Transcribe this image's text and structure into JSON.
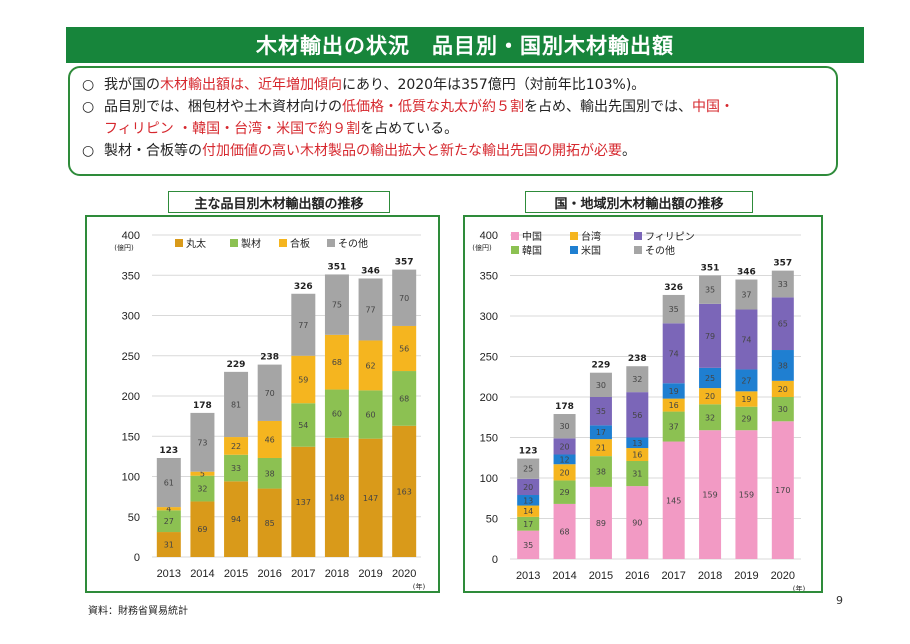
{
  "header": {
    "title": "木材輸出の状況　品目別・国別木材輸出額"
  },
  "summary": {
    "bullet": "○",
    "line1": {
      "a": "我が国の",
      "b": "木材輸出額は、近年増加傾向",
      "c": "にあり、2020年は357億円（対前年比103%)。"
    },
    "line2": {
      "a": "品目別では、梱包材や土木資材向けの",
      "b": "低価格・低質な丸太が約５割",
      "c": "を占め、輸出先国別では、",
      "d": "中国・"
    },
    "line3": {
      "a": "フィリピン ・韓国・台湾・米国で約９割",
      "b": "を占めている。"
    },
    "line4": {
      "a": "製材・合板等の",
      "b": "付加価値の高い木材製品の輸出拡大と新たな輸出先国の開拓が必要",
      "c": "。"
    }
  },
  "footer": {
    "source": "資料：財務省貿易統計",
    "page": "9"
  },
  "chart_data": [
    {
      "type": "bar",
      "stacked": true,
      "title": "主な品目別木材輸出額の推移",
      "ylabel": "(億円)",
      "xlabel": "(年)",
      "ylim": [
        0,
        400
      ],
      "yticks": [
        0,
        50,
        100,
        150,
        200,
        250,
        300,
        350,
        400
      ],
      "categories": [
        "2013",
        "2014",
        "2015",
        "2016",
        "2017",
        "2018",
        "2019",
        "2020"
      ],
      "totals": [
        123,
        178,
        229,
        238,
        326,
        351,
        346,
        357
      ],
      "legend_position": "top-left",
      "series": [
        {
          "name": "丸太",
          "color": "#d99a1a",
          "values": [
            31,
            69,
            94,
            85,
            137,
            148,
            147,
            163
          ]
        },
        {
          "name": "製材",
          "color": "#8cc152",
          "values": [
            27,
            32,
            33,
            38,
            54,
            60,
            60,
            68
          ]
        },
        {
          "name": "合板",
          "color": "#f5b51f",
          "values": [
            4,
            5,
            22,
            46,
            59,
            68,
            62,
            56
          ]
        },
        {
          "name": "その他",
          "color": "#a5a5a5",
          "values": [
            61,
            73,
            81,
            70,
            77,
            75,
            77,
            70
          ]
        }
      ]
    },
    {
      "type": "bar",
      "stacked": true,
      "title": "国・地域別木材輸出額の推移",
      "ylabel": "(億円)",
      "xlabel": "(年)",
      "ylim": [
        0,
        400
      ],
      "yticks": [
        0,
        50,
        100,
        150,
        200,
        250,
        300,
        350,
        400
      ],
      "categories": [
        "2013",
        "2014",
        "2015",
        "2016",
        "2017",
        "2018",
        "2019",
        "2020"
      ],
      "totals": [
        123,
        178,
        229,
        238,
        326,
        351,
        346,
        357
      ],
      "legend_position": "top-left",
      "series": [
        {
          "name": "中国",
          "color": "#f29ac4",
          "values": [
            35,
            68,
            89,
            90,
            145,
            159,
            159,
            170
          ]
        },
        {
          "name": "韓国",
          "color": "#8cc152",
          "values": [
            17,
            29,
            38,
            31,
            37,
            32,
            29,
            30
          ]
        },
        {
          "name": "台湾",
          "color": "#f5b51f",
          "values": [
            14,
            20,
            21,
            16,
            16,
            20,
            19,
            20
          ]
        },
        {
          "name": "米国",
          "color": "#1f7fd1",
          "values": [
            13,
            12,
            17,
            13,
            19,
            25,
            27,
            38
          ]
        },
        {
          "name": "フィリピン",
          "color": "#7b66b8",
          "values": [
            20,
            20,
            35,
            56,
            74,
            79,
            74,
            65
          ]
        },
        {
          "name": "その他",
          "color": "#a5a5a5",
          "values": [
            25,
            30,
            30,
            32,
            35,
            35,
            37,
            33
          ]
        }
      ]
    }
  ]
}
